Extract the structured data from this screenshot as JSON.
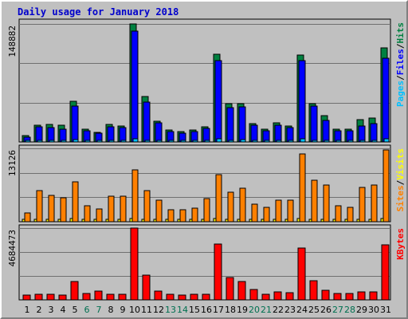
{
  "chart_data": {
    "title": "Daily usage for January 2018",
    "days": [
      1,
      2,
      3,
      4,
      5,
      6,
      7,
      8,
      9,
      10,
      11,
      12,
      13,
      14,
      15,
      16,
      17,
      18,
      19,
      20,
      21,
      22,
      23,
      24,
      25,
      26,
      27,
      28,
      29,
      30,
      31
    ],
    "weekend_days": [
      6,
      7,
      13,
      14,
      20,
      21,
      27,
      28
    ],
    "colors": {
      "title": "#0000cc",
      "weekday_label": "#000000",
      "weekend_label": "#007050",
      "hits": "#008040",
      "files": "#0000ff",
      "pages": "#00c0ff",
      "visits": "#ffff00",
      "sites": "#ff8000",
      "kbytes": "#ff0000",
      "plot_bg": "#c0c0c0",
      "grid": "#707070"
    },
    "panels": [
      {
        "type": "bar",
        "ymax_label": "148882",
        "ymax": 148882,
        "legend": [
          {
            "text": "Pages",
            "color": "#00c0ff"
          },
          {
            "text": "/",
            "color": "#000000"
          },
          {
            "text": "Files",
            "color": "#0000ff"
          },
          {
            "text": "/",
            "color": "#000000"
          },
          {
            "text": "Hits",
            "color": "#008040"
          }
        ],
        "series": [
          {
            "name": "Hits",
            "color": "#008040",
            "values": [
              8200,
              21500,
              22000,
              21000,
              51000,
              16000,
              12500,
              22000,
              20500,
              148882,
              57500,
              26500,
              15500,
              12700,
              15000,
              19500,
              111000,
              48000,
              48000,
              23500,
              16000,
              24000,
              20600,
              110000,
              48500,
              33500,
              16500,
              15700,
              28000,
              30000,
              119000
            ]
          },
          {
            "name": "Files",
            "color": "#0000ff",
            "values": [
              6500,
              19500,
              18000,
              16500,
              45000,
              14500,
              11000,
              19000,
              18500,
              140000,
              50000,
              24000,
              13500,
              11000,
              13000,
              17000,
              103000,
              43000,
              44000,
              21000,
              14000,
              21000,
              18000,
              103000,
              45000,
              27000,
              14500,
              14000,
              20000,
              23000,
              106000
            ]
          },
          {
            "name": "Pages",
            "color": "#00c0ff",
            "values": [
              1600,
              1800,
              1700,
              1500,
              2800,
              1300,
              1200,
              1700,
              1600,
              4200,
              2400,
              1600,
              1400,
              1200,
              1300,
              1500,
              3800,
              2200,
              3100,
              1500,
              1400,
              1600,
              1500,
              3600,
              2300,
              1900,
              1400,
              1300,
              1700,
              1800,
              3900
            ]
          }
        ]
      },
      {
        "type": "bar",
        "ymax_label": "13126",
        "ymax": 13126,
        "legend": [
          {
            "text": "Sites",
            "color": "#ff8000"
          },
          {
            "text": "/",
            "color": "#000000"
          },
          {
            "text": "Visits",
            "color": "#ffff00"
          }
        ],
        "series": [
          {
            "name": "Visits",
            "color": "#ffff00",
            "values": [
              380,
              420,
              420,
              420,
              540,
              400,
              380,
              420,
              420,
              600,
              470,
              420,
              400,
              380,
              380,
              420,
              560,
              460,
              460,
              420,
              400,
              420,
              420,
              560,
              460,
              440,
              400,
              400,
              420,
              440,
              560
            ]
          },
          {
            "name": "Sites",
            "color": "#ff8000",
            "values": [
              1500,
              5500,
              4700,
              4300,
              7100,
              2800,
              2300,
              4600,
              4600,
              9200,
              5500,
              3900,
              2200,
              2100,
              2400,
              4200,
              8400,
              5200,
              6000,
              3200,
              2600,
              3900,
              3900,
              12100,
              7400,
              6500,
              2800,
              2600,
              6100,
              6600,
              12800
            ]
          }
        ]
      },
      {
        "type": "bar",
        "ymax_label": "4684473",
        "ymax": 4684473,
        "legend": [
          {
            "text": "KBytes",
            "color": "#ff0000"
          }
        ],
        "series": [
          {
            "name": "KBytes",
            "color": "#ff0000",
            "values": [
              300000,
              350000,
              350000,
              330000,
              1200000,
              400000,
              560000,
              380000,
              340000,
              4684473,
              1630000,
              560000,
              380000,
              300000,
              380000,
              380000,
              3650000,
              1440000,
              1180000,
              660000,
              370000,
              500000,
              490000,
              3380000,
              1240000,
              600000,
              420000,
              420000,
              530000,
              530000,
              3560000
            ]
          }
        ]
      }
    ]
  }
}
